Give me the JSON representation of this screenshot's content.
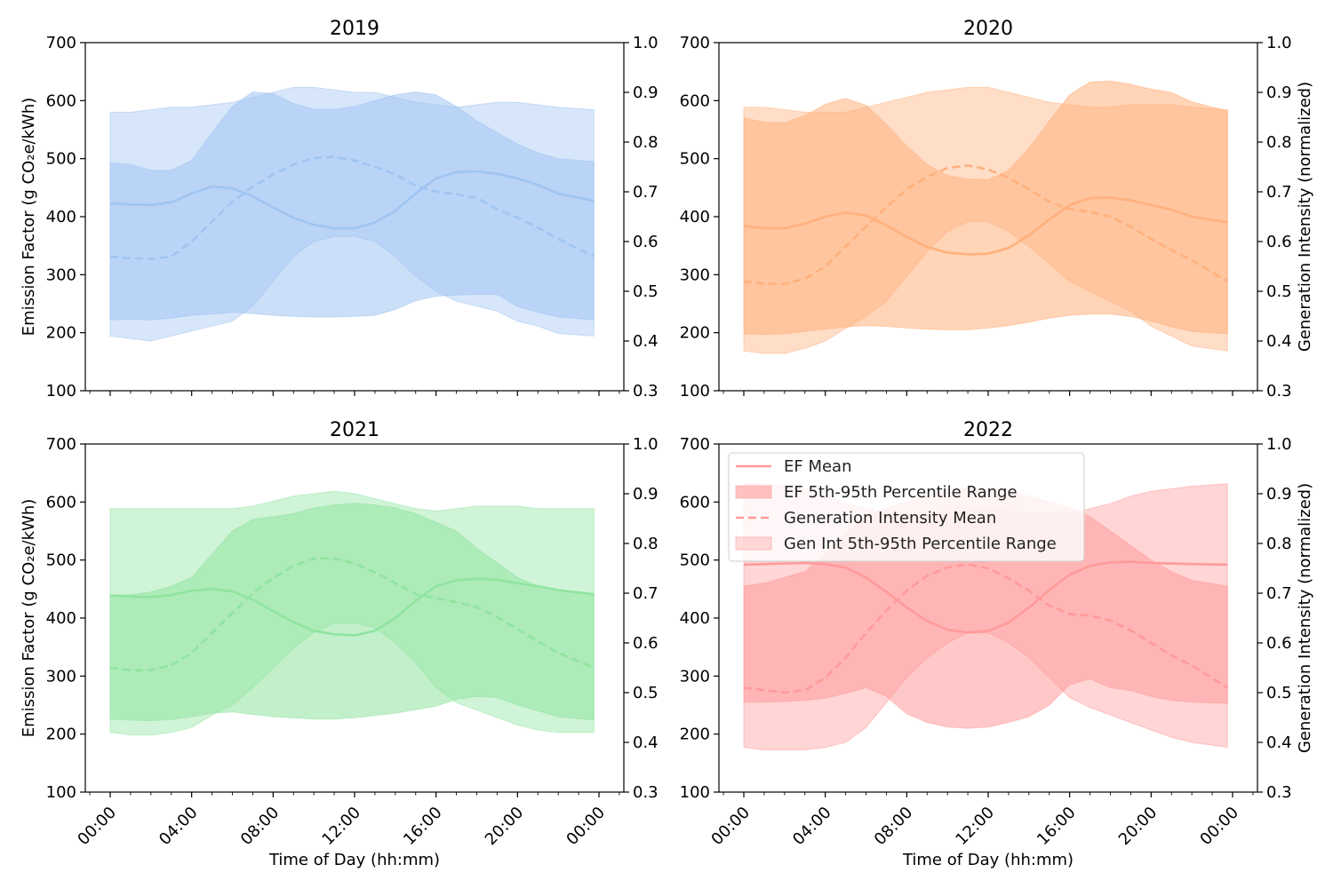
{
  "chart_data": [
    {
      "type": "area",
      "title": "2019",
      "xlabel": "",
      "ylabel": "Emission Factor (g CO₂e/kWh)",
      "y2label": "",
      "xlim": [
        0,
        24
      ],
      "ylim": [
        100,
        700
      ],
      "y2lim": [
        0.3,
        1.0
      ],
      "yticks": [
        "100",
        "200",
        "300",
        "400",
        "500",
        "600",
        "700"
      ],
      "y2ticks": [
        "0.3",
        "0.4",
        "0.5",
        "0.6",
        "0.7",
        "0.8",
        "0.9",
        "1.0"
      ],
      "xticks": [],
      "colors": {
        "main": "#a0c4f2",
        "band": "#a0c4f2"
      },
      "x_hours": [
        0,
        1,
        2,
        3,
        4,
        5,
        6,
        7,
        8,
        9,
        10,
        11,
        12,
        13,
        14,
        15,
        16,
        17,
        18,
        19,
        20,
        21,
        22,
        23.75
      ],
      "series": [
        {
          "name": "EF Mean",
          "axis": "left",
          "style": "solid",
          "values": [
            423,
            421,
            420,
            425,
            440,
            452,
            449,
            435,
            416,
            398,
            386,
            380,
            380,
            390,
            410,
            440,
            466,
            477,
            478,
            474,
            466,
            455,
            440,
            427
          ]
        },
        {
          "name": "EF 5th-95th Percentile Range",
          "axis": "left",
          "style": "band",
          "lower": [
            222,
            223,
            222,
            225,
            230,
            232,
            235,
            233,
            230,
            228,
            227,
            227,
            228,
            230,
            240,
            255,
            263,
            265,
            266,
            266,
            245,
            235,
            227,
            222
          ],
          "upper": [
            493,
            490,
            480,
            480,
            497,
            545,
            590,
            615,
            612,
            595,
            585,
            585,
            590,
            600,
            610,
            615,
            610,
            590,
            565,
            545,
            525,
            510,
            500,
            495
          ]
        },
        {
          "name": "Generation Intensity Mean",
          "axis": "right",
          "style": "dashed",
          "values": [
            0.57,
            0.566,
            0.565,
            0.57,
            0.6,
            0.64,
            0.68,
            0.71,
            0.735,
            0.755,
            0.768,
            0.77,
            0.763,
            0.75,
            0.735,
            0.712,
            0.7,
            0.695,
            0.688,
            0.665,
            0.648,
            0.628,
            0.605,
            0.57
          ]
        },
        {
          "name": "Gen Int 5th-95th Percentile Range",
          "axis": "right",
          "style": "band",
          "lower": [
            0.41,
            0.405,
            0.4,
            0.41,
            0.42,
            0.43,
            0.44,
            0.47,
            0.52,
            0.57,
            0.6,
            0.61,
            0.61,
            0.6,
            0.57,
            0.53,
            0.5,
            0.48,
            0.47,
            0.46,
            0.44,
            0.43,
            0.415,
            0.41
          ],
          "upper": [
            0.86,
            0.86,
            0.865,
            0.87,
            0.87,
            0.875,
            0.88,
            0.89,
            0.9,
            0.91,
            0.91,
            0.905,
            0.9,
            0.9,
            0.89,
            0.88,
            0.875,
            0.87,
            0.875,
            0.88,
            0.88,
            0.875,
            0.87,
            0.865
          ]
        }
      ]
    },
    {
      "type": "area",
      "title": "2020",
      "xlabel": "",
      "ylabel": "",
      "y2label": "Generation Intensity (normalized)",
      "xlim": [
        0,
        24
      ],
      "ylim": [
        100,
        700
      ],
      "y2lim": [
        0.3,
        1.0
      ],
      "yticks": [
        "100",
        "200",
        "300",
        "400",
        "500",
        "600",
        "700"
      ],
      "y2ticks": [
        "0.3",
        "0.4",
        "0.5",
        "0.6",
        "0.7",
        "0.8",
        "0.9",
        "1.0"
      ],
      "xticks": [],
      "colors": {
        "main": "#ffb07c",
        "band": "#ffb07c"
      },
      "x_hours": [
        0,
        1,
        2,
        3,
        4,
        5,
        6,
        7,
        8,
        9,
        10,
        11,
        12,
        13,
        14,
        15,
        16,
        17,
        18,
        19,
        20,
        21,
        22,
        23.75
      ],
      "series": [
        {
          "name": "EF Mean",
          "axis": "left",
          "style": "solid",
          "values": [
            384,
            380,
            380,
            388,
            400,
            407,
            402,
            385,
            365,
            348,
            338,
            335,
            336,
            346,
            368,
            395,
            420,
            432,
            433,
            428,
            420,
            412,
            400,
            390
          ]
        },
        {
          "name": "EF 5th-95th Percentile Range",
          "axis": "left",
          "style": "band",
          "lower": [
            198,
            197,
            198,
            202,
            206,
            210,
            212,
            211,
            208,
            206,
            205,
            205,
            208,
            212,
            218,
            225,
            230,
            232,
            232,
            228,
            220,
            210,
            202,
            198
          ]
        },
        {
          "name": "Generation Intensity Mean",
          "axis": "right",
          "style": "dashed",
          "values": [
            0.52,
            0.515,
            0.515,
            0.525,
            0.55,
            0.59,
            0.63,
            0.67,
            0.705,
            0.73,
            0.748,
            0.753,
            0.745,
            0.728,
            0.705,
            0.68,
            0.665,
            0.66,
            0.65,
            0.63,
            0.605,
            0.583,
            0.562,
            0.52
          ]
        },
        {
          "name": "Gen Int 5th-95th Percentile Range",
          "axis": "right",
          "style": "band",
          "lower": [
            0.38,
            0.375,
            0.375,
            0.385,
            0.4,
            0.425,
            0.45,
            0.48,
            0.53,
            0.58,
            0.62,
            0.64,
            0.64,
            0.62,
            0.59,
            0.555,
            0.52,
            0.5,
            0.48,
            0.46,
            0.43,
            0.41,
            0.39,
            0.38
          ],
          "upper": [
            0.87,
            0.87,
            0.865,
            0.86,
            0.86,
            0.86,
            0.87,
            0.88,
            0.89,
            0.9,
            0.905,
            0.91,
            0.91,
            0.9,
            0.89,
            0.88,
            0.875,
            0.87,
            0.87,
            0.875,
            0.875,
            0.875,
            0.87,
            0.865
          ]
        }
      ]
    },
    {
      "type": "area",
      "title": "2021",
      "xlabel": "Time of Day (hh:mm)",
      "ylabel": "Emission Factor (g CO₂e/kWh)",
      "y2label": "",
      "xlim": [
        0,
        24
      ],
      "ylim": [
        100,
        700
      ],
      "y2lim": [
        0.3,
        1.0
      ],
      "yticks": [
        "100",
        "200",
        "300",
        "400",
        "500",
        "600",
        "700"
      ],
      "y2ticks": [
        "0.3",
        "0.4",
        "0.5",
        "0.6",
        "0.7",
        "0.8",
        "0.9",
        "1.0"
      ],
      "xticks": [
        "00:00",
        "04:00",
        "08:00",
        "12:00",
        "16:00",
        "20:00",
        "00:00"
      ],
      "colors": {
        "main": "#90e4a0",
        "band": "#90e4a0"
      },
      "x_hours": [
        0,
        1,
        2,
        3,
        4,
        5,
        6,
        7,
        8,
        9,
        10,
        11,
        12,
        13,
        14,
        15,
        16,
        17,
        18,
        19,
        20,
        21,
        22,
        23.75
      ],
      "series": [
        {
          "name": "EF Mean",
          "axis": "left",
          "style": "solid",
          "values": [
            439,
            437,
            436,
            440,
            447,
            450,
            446,
            432,
            412,
            393,
            378,
            372,
            370,
            378,
            400,
            430,
            455,
            465,
            468,
            466,
            460,
            455,
            448,
            441
          ]
        },
        {
          "name": "EF 5th-95th Percentile Range",
          "axis": "left",
          "style": "band",
          "lower": [
            226,
            224,
            223,
            225,
            230,
            236,
            238,
            234,
            230,
            228,
            226,
            226,
            228,
            232,
            236,
            242,
            248,
            260,
            265,
            263,
            250,
            240,
            230,
            224
          ],
          "upper": [
            440,
            440,
            445,
            455,
            470,
            510,
            550,
            570,
            575,
            580,
            590,
            595,
            598,
            595,
            590,
            580,
            565,
            550,
            520,
            495,
            470,
            455,
            448,
            440
          ]
        },
        {
          "name": "Generation Intensity Mean",
          "axis": "right",
          "style": "dashed",
          "values": [
            0.55,
            0.545,
            0.545,
            0.555,
            0.58,
            0.62,
            0.66,
            0.7,
            0.73,
            0.755,
            0.77,
            0.77,
            0.76,
            0.742,
            0.72,
            0.698,
            0.69,
            0.682,
            0.672,
            0.652,
            0.628,
            0.603,
            0.58,
            0.55
          ]
        },
        {
          "name": "Gen Int 5th-95th Percentile Range",
          "axis": "right",
          "style": "band",
          "lower": [
            0.42,
            0.415,
            0.415,
            0.42,
            0.43,
            0.455,
            0.475,
            0.51,
            0.55,
            0.59,
            0.62,
            0.64,
            0.64,
            0.63,
            0.6,
            0.56,
            0.51,
            0.48,
            0.465,
            0.45,
            0.435,
            0.425,
            0.42,
            0.42
          ],
          "upper": [
            0.87,
            0.87,
            0.87,
            0.87,
            0.87,
            0.87,
            0.87,
            0.875,
            0.885,
            0.895,
            0.9,
            0.905,
            0.9,
            0.89,
            0.88,
            0.87,
            0.865,
            0.87,
            0.875,
            0.875,
            0.875,
            0.87,
            0.87,
            0.87
          ]
        }
      ]
    },
    {
      "type": "area",
      "title": "2022",
      "xlabel": "Time of Day (hh:mm)",
      "ylabel": "",
      "y2label": "Generation Intensity (normalized)",
      "xlim": [
        0,
        24
      ],
      "ylim": [
        100,
        700
      ],
      "y2lim": [
        0.3,
        1.0
      ],
      "yticks": [
        "100",
        "200",
        "300",
        "400",
        "500",
        "600",
        "700"
      ],
      "y2ticks": [
        "0.3",
        "0.4",
        "0.5",
        "0.6",
        "0.7",
        "0.8",
        "0.9",
        "1.0"
      ],
      "xticks": [
        "00:00",
        "04:00",
        "08:00",
        "12:00",
        "16:00",
        "20:00",
        "00:00"
      ],
      "colors": {
        "main": "#ff9a9a",
        "band": "#ff9a9a"
      },
      "legend": {
        "placement": "top-left",
        "entries": [
          "EF Mean",
          "EF 5th-95th Percentile Range",
          "Generation Intensity Mean",
          "Gen Int 5th-95th Percentile Range"
        ]
      },
      "x_hours": [
        0,
        1,
        2,
        3,
        4,
        5,
        6,
        7,
        8,
        9,
        10,
        11,
        12,
        13,
        14,
        15,
        16,
        17,
        18,
        19,
        20,
        21,
        22,
        23.75
      ],
      "series": [
        {
          "name": "EF Mean",
          "axis": "left",
          "style": "solid",
          "values": [
            492,
            493,
            494,
            495,
            493,
            487,
            470,
            445,
            418,
            395,
            380,
            375,
            378,
            392,
            418,
            448,
            475,
            490,
            496,
            497,
            495,
            494,
            493,
            492
          ]
        },
        {
          "name": "EF 5th-95th Percentile Range",
          "axis": "left",
          "style": "band",
          "lower": [
            255,
            255,
            256,
            258,
            262,
            270,
            280,
            265,
            235,
            220,
            212,
            210,
            212,
            220,
            230,
            250,
            285,
            295,
            280,
            275,
            265,
            258,
            255,
            253
          ],
          "upper": [
            455,
            460,
            470,
            480,
            510,
            545,
            575,
            590,
            600,
            610,
            620,
            625,
            625,
            620,
            610,
            600,
            590,
            575,
            550,
            525,
            500,
            480,
            465,
            455
          ]
        },
        {
          "name": "Generation Intensity Mean",
          "axis": "right",
          "style": "dashed",
          "values": [
            0.51,
            0.505,
            0.5,
            0.505,
            0.53,
            0.57,
            0.62,
            0.665,
            0.705,
            0.735,
            0.752,
            0.758,
            0.75,
            0.73,
            0.705,
            0.675,
            0.658,
            0.655,
            0.645,
            0.625,
            0.6,
            0.575,
            0.555,
            0.51
          ]
        },
        {
          "name": "Gen Int 5th-95th Percentile Range",
          "axis": "right",
          "style": "band",
          "lower": [
            0.39,
            0.385,
            0.385,
            0.385,
            0.39,
            0.4,
            0.43,
            0.48,
            0.53,
            0.57,
            0.6,
            0.62,
            0.62,
            0.6,
            0.57,
            0.53,
            0.49,
            0.47,
            0.455,
            0.44,
            0.425,
            0.41,
            0.4,
            0.39
          ],
          "upper": [
            0.92,
            0.92,
            0.915,
            0.91,
            0.9,
            0.88,
            0.87,
            0.86,
            0.86,
            0.86,
            0.865,
            0.87,
            0.87,
            0.865,
            0.86,
            0.86,
            0.86,
            0.87,
            0.88,
            0.895,
            0.905,
            0.91,
            0.915,
            0.92
          ]
        }
      ]
    }
  ]
}
